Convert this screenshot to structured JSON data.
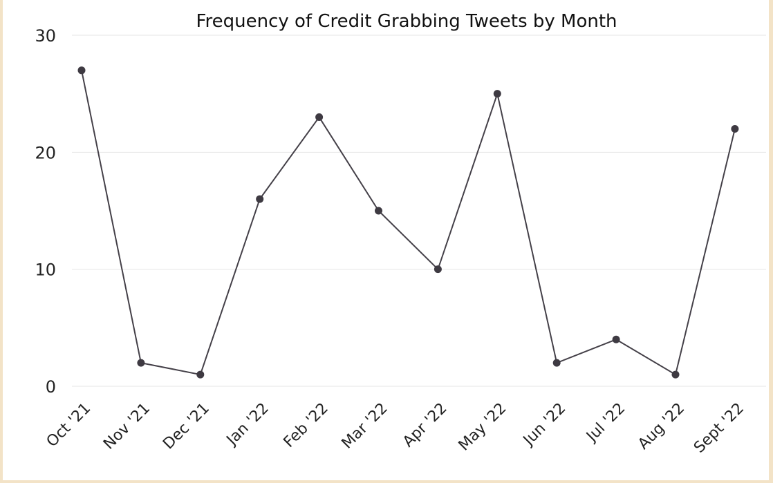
{
  "chart_data": {
    "type": "line",
    "title": "Frequency of Credit Grabbing Tweets by Month",
    "xlabel": "",
    "ylabel": "",
    "categories": [
      "Oct '21",
      "Nov '21",
      "Dec '21",
      "Jan '22",
      "Feb '22",
      "Mar '22",
      "Apr '22",
      "May '22",
      "Jun '22",
      "Jul '22",
      "Aug '22",
      "Sept '22"
    ],
    "series": [
      {
        "values": [
          27,
          2,
          1,
          16,
          23,
          15,
          10,
          25,
          2,
          4,
          1,
          22
        ]
      }
    ],
    "ylim": [
      0,
      30
    ],
    "yticks": [
      0,
      10,
      20,
      30
    ],
    "grid": true,
    "legend": "none",
    "colors": {
      "line": "#444048",
      "point": "#3e3a42",
      "grid": "#e6e6e6",
      "border": "#f3e3c7"
    }
  }
}
